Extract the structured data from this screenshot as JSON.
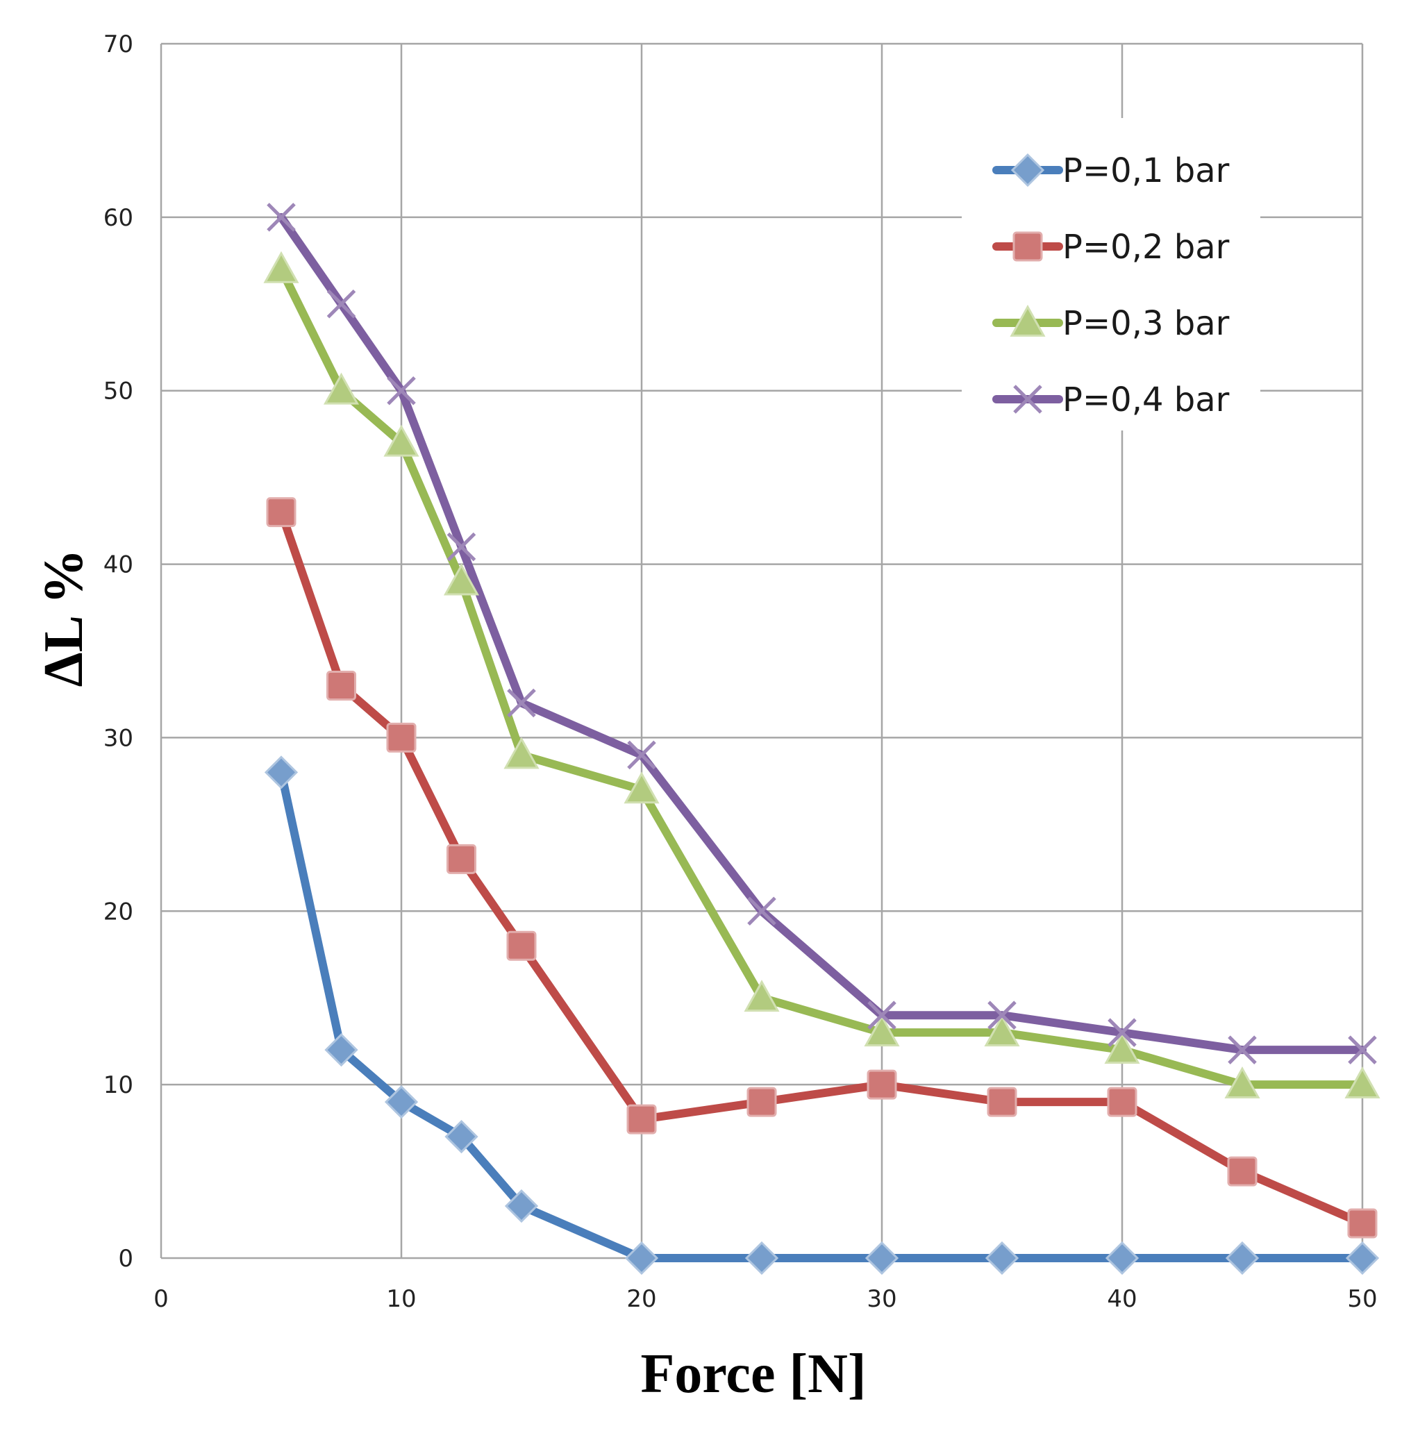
{
  "chart_data": {
    "type": "line",
    "title": "",
    "xlabel": "Force [N]",
    "ylabel": "ΔL %",
    "xlim": [
      0,
      50
    ],
    "ylim": [
      0,
      70
    ],
    "x_ticks": [
      0,
      10,
      20,
      30,
      40,
      50
    ],
    "y_ticks": [
      0,
      10,
      20,
      30,
      40,
      50,
      60,
      70
    ],
    "grid": true,
    "legend_position": "top-right",
    "x": [
      5,
      7.5,
      10,
      12.5,
      15,
      20,
      25,
      30,
      35,
      40,
      45,
      50
    ],
    "series": [
      {
        "name": "P=0,1 bar",
        "color": "#4a7ebb",
        "marker": "diamond",
        "values": [
          28,
          12,
          9,
          7,
          3,
          0,
          0,
          0,
          0,
          0,
          0,
          0
        ]
      },
      {
        "name": "P=0,2 bar",
        "color": "#be4b48",
        "marker": "square",
        "values": [
          43,
          33,
          30,
          23,
          18,
          8,
          9,
          10,
          9,
          9,
          5,
          2
        ]
      },
      {
        "name": "P=0,3 bar",
        "color": "#98b954",
        "marker": "triangle",
        "values": [
          57,
          50,
          47,
          39,
          29,
          27,
          15,
          13,
          13,
          12,
          10,
          10
        ]
      },
      {
        "name": "P=0,4 bar",
        "color": "#7d5fa0",
        "marker": "x",
        "values": [
          60,
          55,
          50,
          41,
          32,
          29,
          20,
          14,
          14,
          13,
          12,
          12
        ]
      }
    ]
  }
}
